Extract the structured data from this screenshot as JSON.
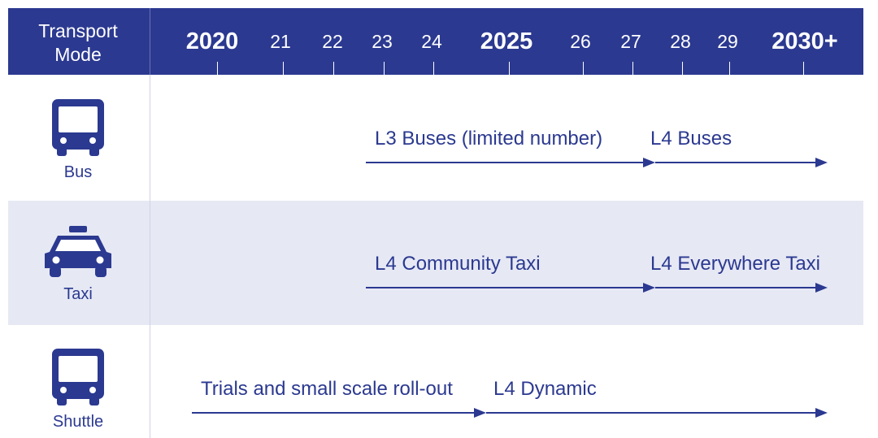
{
  "header": {
    "column_title": "Transport\nMode",
    "years": [
      {
        "label": "2020",
        "major": true
      },
      {
        "label": "21",
        "major": false
      },
      {
        "label": "22",
        "major": false
      },
      {
        "label": "23",
        "major": false
      },
      {
        "label": "24",
        "major": false
      },
      {
        "label": "2025",
        "major": true
      },
      {
        "label": "26",
        "major": false
      },
      {
        "label": "27",
        "major": false
      },
      {
        "label": "28",
        "major": false
      },
      {
        "label": "29",
        "major": false
      },
      {
        "label": "2030+",
        "major": true
      }
    ]
  },
  "colors": {
    "brand": "#2b3990",
    "band": "#e6e8f4",
    "header_text": "#ffffff"
  },
  "rows": [
    {
      "mode": "Bus",
      "icon": "bus-icon",
      "segments": [
        {
          "label": "L3 Buses (limited number)",
          "start_year": 2023,
          "end_year": 2027.5
        },
        {
          "label": "L4 Buses",
          "start_year": 2027.5,
          "end_year": 2030
        }
      ]
    },
    {
      "mode": "Taxi",
      "icon": "taxi-icon",
      "segments": [
        {
          "label": "L4 Community Taxi",
          "start_year": 2023,
          "end_year": 2027.5
        },
        {
          "label": "L4 Everywhere Taxi",
          "start_year": 2027.5,
          "end_year": 2030
        }
      ]
    },
    {
      "mode": "Shuttle",
      "icon": "shuttle-icon",
      "segments": [
        {
          "label": "Trials and small scale roll-out",
          "start_year": 2019.6,
          "end_year": 2025.5
        },
        {
          "label": "L4 Dynamic",
          "start_year": 2025.5,
          "end_year": 2030
        }
      ]
    }
  ]
}
